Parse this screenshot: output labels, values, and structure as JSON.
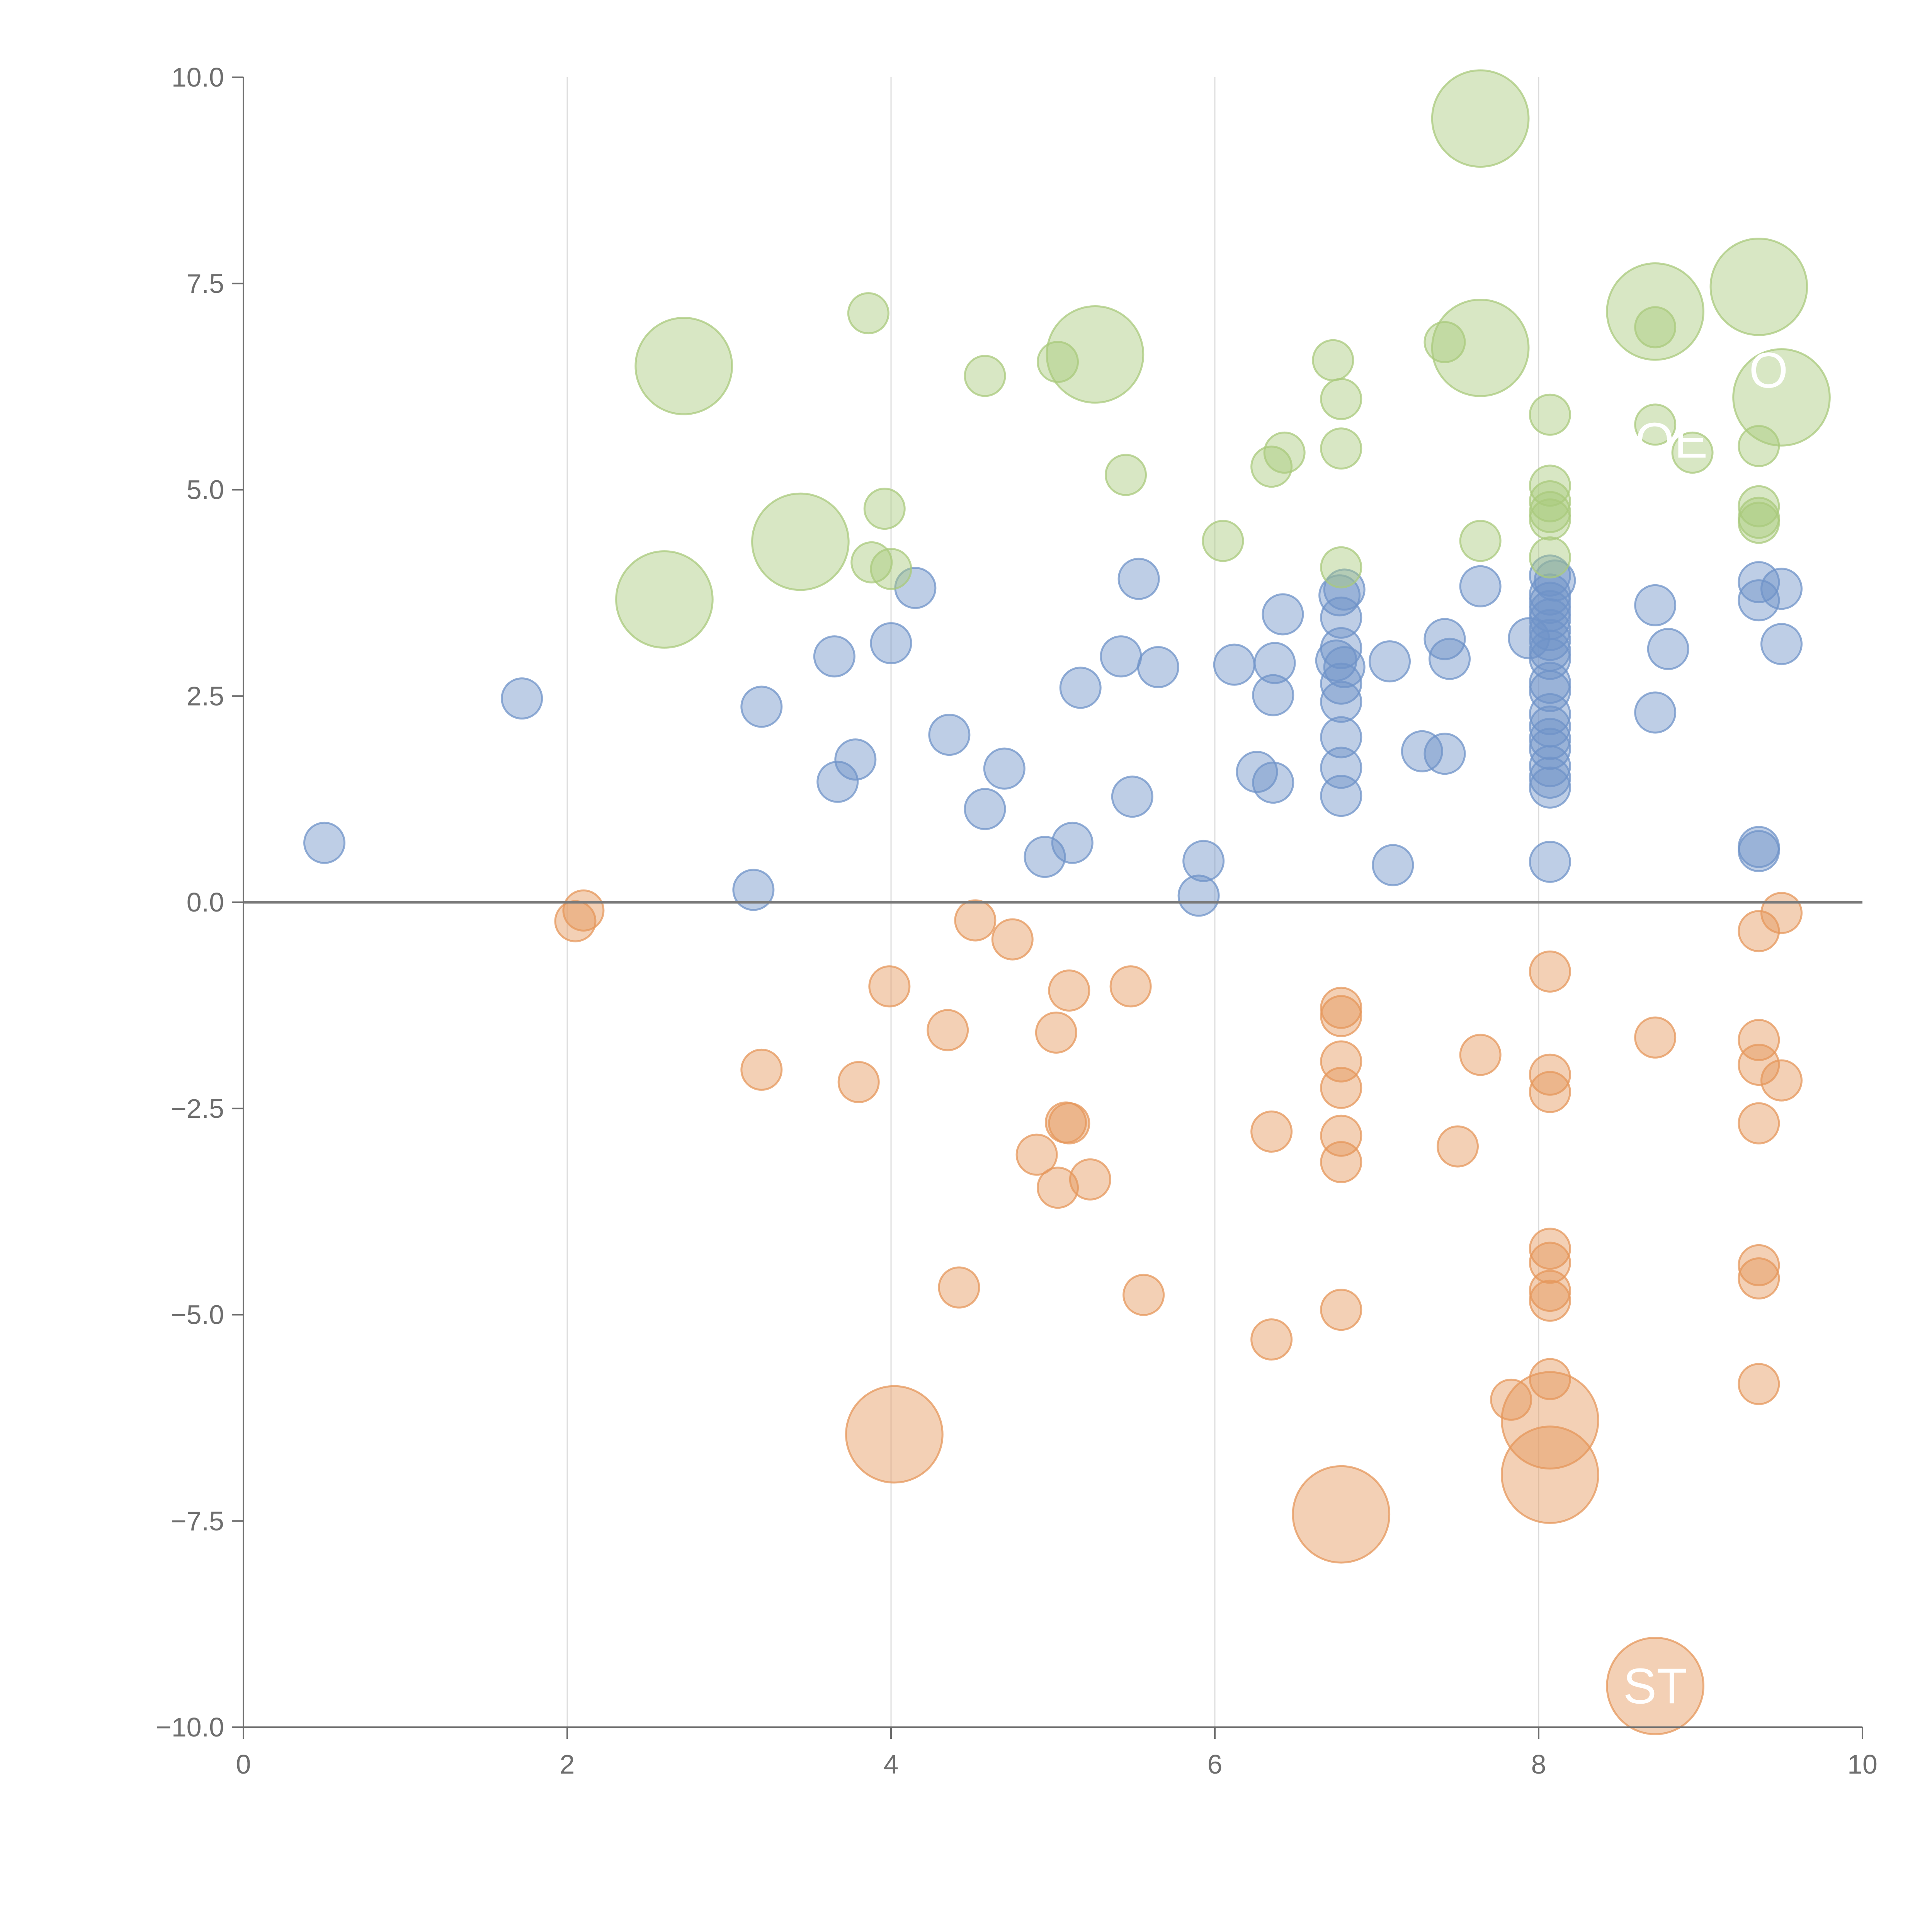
{
  "chart_data": {
    "type": "scatter",
    "title": "",
    "xlabel": "",
    "ylabel": "",
    "xlim": [
      0,
      10
    ],
    "ylim": [
      -10,
      10
    ],
    "x_ticks": [
      0,
      2,
      4,
      6,
      8,
      10
    ],
    "x_tick_labels": [
      "0",
      "2",
      "4",
      "6",
      "8",
      "10"
    ],
    "y_ticks": [
      -10,
      -7.5,
      -5,
      -2.5,
      0,
      2.5,
      5,
      7.5,
      10
    ],
    "y_tick_labels": [
      "−10.0",
      "−7.5",
      "−5.0",
      "−2.5",
      "0.0",
      "2.5",
      "5.0",
      "7.5",
      "10.0"
    ],
    "vertical_grid": [
      2,
      4,
      6,
      8
    ],
    "zero_line": 0,
    "colors": {
      "blue": "#6f93c8",
      "orange": "#e5975b",
      "green": "#a9c97c",
      "axis": "#6e6e6e",
      "grid": "#dcdcdc",
      "zero_line": "#7a7a7a"
    },
    "series": [
      {
        "name": "blue",
        "color_key": "blue",
        "points": [
          [
            0.5,
            0.72,
            1
          ],
          [
            1.72,
            2.47,
            1
          ],
          [
            3.15,
            0.15,
            1
          ],
          [
            3.2,
            2.37,
            1
          ],
          [
            3.65,
            2.98,
            1
          ],
          [
            3.67,
            1.46,
            1
          ],
          [
            3.78,
            1.73,
            1
          ],
          [
            4.0,
            3.14,
            1
          ],
          [
            4.15,
            3.81,
            1
          ],
          [
            4.36,
            2.03,
            1
          ],
          [
            4.58,
            1.13,
            1
          ],
          [
            4.7,
            1.62,
            1
          ],
          [
            4.95,
            0.55,
            1
          ],
          [
            5.12,
            0.72,
            1
          ],
          [
            5.17,
            2.6,
            1
          ],
          [
            5.42,
            2.98,
            1
          ],
          [
            5.49,
            1.28,
            1
          ],
          [
            5.53,
            3.92,
            1
          ],
          [
            5.65,
            2.85,
            1
          ],
          [
            5.9,
            0.08,
            1
          ],
          [
            5.93,
            0.5,
            1
          ],
          [
            6.12,
            2.88,
            1
          ],
          [
            6.26,
            1.58,
            1
          ],
          [
            6.36,
            1.45,
            1
          ],
          [
            6.36,
            2.51,
            1
          ],
          [
            6.37,
            2.9,
            1
          ],
          [
            6.42,
            3.49,
            1
          ],
          [
            6.75,
            2.93,
            1
          ],
          [
            6.77,
            3.72,
            1
          ],
          [
            6.78,
            3.45,
            1
          ],
          [
            6.78,
            3.08,
            1
          ],
          [
            6.78,
            2.65,
            1
          ],
          [
            6.78,
            2.43,
            1
          ],
          [
            6.78,
            2.0,
            1
          ],
          [
            6.78,
            1.63,
            1
          ],
          [
            6.78,
            1.29,
            1
          ],
          [
            6.8,
            3.79,
            1
          ],
          [
            6.8,
            2.85,
            1
          ],
          [
            7.08,
            2.92,
            1
          ],
          [
            7.1,
            0.45,
            1
          ],
          [
            7.28,
            1.83,
            1
          ],
          [
            7.42,
            3.19,
            1
          ],
          [
            7.42,
            1.8,
            1
          ],
          [
            7.45,
            2.95,
            1
          ],
          [
            7.64,
            3.83,
            1
          ],
          [
            7.94,
            3.2,
            1
          ],
          [
            8.07,
            3.96,
            1
          ],
          [
            8.07,
            3.73,
            1
          ],
          [
            8.07,
            3.63,
            1
          ],
          [
            8.07,
            3.53,
            1
          ],
          [
            8.07,
            3.43,
            1
          ],
          [
            8.07,
            3.3,
            1
          ],
          [
            8.07,
            3.18,
            1
          ],
          [
            8.07,
            3.05,
            1
          ],
          [
            8.07,
            2.95,
            1
          ],
          [
            8.07,
            2.66,
            1
          ],
          [
            8.07,
            2.56,
            1
          ],
          [
            8.07,
            2.28,
            1
          ],
          [
            8.07,
            2.13,
            1
          ],
          [
            8.07,
            1.98,
            1
          ],
          [
            8.07,
            1.86,
            1
          ],
          [
            8.07,
            1.65,
            1
          ],
          [
            8.07,
            1.51,
            1
          ],
          [
            8.07,
            1.39,
            1
          ],
          [
            8.07,
            0.49,
            1
          ],
          [
            8.1,
            3.9,
            1
          ],
          [
            8.72,
            3.6,
            1
          ],
          [
            8.72,
            2.3,
            1
          ],
          [
            8.8,
            3.07,
            1
          ],
          [
            9.36,
            3.88,
            1
          ],
          [
            9.36,
            3.66,
            1
          ],
          [
            9.36,
            0.67,
            1
          ],
          [
            9.36,
            0.62,
            1
          ],
          [
            9.5,
            3.8,
            1
          ],
          [
            9.5,
            3.13,
            1
          ]
        ]
      },
      {
        "name": "orange",
        "color_key": "orange",
        "points": [
          [
            2.05,
            -0.23,
            1
          ],
          [
            2.1,
            -0.1,
            1
          ],
          [
            3.2,
            -2.03,
            1
          ],
          [
            3.8,
            -2.18,
            1
          ],
          [
            3.99,
            -1.02,
            1
          ],
          [
            4.02,
            -6.45,
            2.4
          ],
          [
            4.35,
            -1.55,
            1
          ],
          [
            4.42,
            -4.67,
            1
          ],
          [
            4.52,
            -0.22,
            1
          ],
          [
            4.75,
            -0.45,
            1
          ],
          [
            4.9,
            -3.06,
            1
          ],
          [
            5.02,
            -1.58,
            1
          ],
          [
            5.03,
            -3.46,
            1
          ],
          [
            5.08,
            -2.67,
            1
          ],
          [
            5.1,
            -1.07,
            1
          ],
          [
            5.1,
            -2.68,
            1
          ],
          [
            5.23,
            -3.36,
            1
          ],
          [
            5.48,
            -1.02,
            1
          ],
          [
            5.56,
            -4.76,
            1
          ],
          [
            6.35,
            -2.78,
            1
          ],
          [
            6.35,
            -5.3,
            1
          ],
          [
            6.78,
            -1.28,
            1
          ],
          [
            6.78,
            -1.38,
            1
          ],
          [
            6.78,
            -1.93,
            1
          ],
          [
            6.78,
            -2.25,
            1
          ],
          [
            6.78,
            -2.83,
            1
          ],
          [
            6.78,
            -3.15,
            1
          ],
          [
            6.78,
            -4.94,
            1
          ],
          [
            6.78,
            -7.42,
            2.4
          ],
          [
            7.5,
            -2.96,
            1
          ],
          [
            7.64,
            -1.85,
            1
          ],
          [
            7.83,
            -6.03,
            1
          ],
          [
            8.07,
            -0.84,
            1
          ],
          [
            8.07,
            -2.09,
            1
          ],
          [
            8.07,
            -2.3,
            1
          ],
          [
            8.07,
            -4.2,
            1
          ],
          [
            8.07,
            -4.37,
            1
          ],
          [
            8.07,
            -4.71,
            1
          ],
          [
            8.07,
            -4.83,
            1
          ],
          [
            8.07,
            -5.78,
            1
          ],
          [
            8.07,
            -6.28,
            2.4
          ],
          [
            8.07,
            -6.94,
            2.4
          ],
          [
            8.72,
            -1.64,
            1
          ],
          [
            8.72,
            -9.5,
            2.4
          ],
          [
            9.36,
            -0.35,
            1
          ],
          [
            9.36,
            -1.67,
            1
          ],
          [
            9.36,
            -1.97,
            1
          ],
          [
            9.36,
            -2.68,
            1
          ],
          [
            9.36,
            -4.4,
            1
          ],
          [
            9.36,
            -4.56,
            1
          ],
          [
            9.36,
            -5.84,
            1
          ],
          [
            9.5,
            -0.13,
            1
          ],
          [
            9.5,
            -2.16,
            1
          ]
        ]
      },
      {
        "name": "green",
        "color_key": "green",
        "points": [
          [
            2.6,
            3.67,
            2.4
          ],
          [
            2.72,
            6.5,
            2.4
          ],
          [
            3.44,
            4.37,
            2.4
          ],
          [
            3.86,
            7.14,
            1
          ],
          [
            3.88,
            4.12,
            1
          ],
          [
            3.96,
            4.77,
            1
          ],
          [
            4.0,
            4.04,
            1
          ],
          [
            4.58,
            6.38,
            1
          ],
          [
            5.03,
            6.55,
            1
          ],
          [
            5.26,
            6.64,
            2.4
          ],
          [
            5.45,
            5.18,
            1
          ],
          [
            6.05,
            4.38,
            1
          ],
          [
            6.35,
            5.28,
            1
          ],
          [
            6.43,
            5.45,
            1
          ],
          [
            6.73,
            6.57,
            1
          ],
          [
            6.78,
            4.06,
            1
          ],
          [
            6.78,
            5.5,
            1
          ],
          [
            6.78,
            6.1,
            1
          ],
          [
            7.42,
            6.79,
            1
          ],
          [
            7.64,
            4.38,
            1
          ],
          [
            7.64,
            6.72,
            2.4
          ],
          [
            7.64,
            9.5,
            2.4
          ],
          [
            8.07,
            5.05,
            1
          ],
          [
            8.07,
            4.86,
            1
          ],
          [
            8.07,
            4.73,
            1
          ],
          [
            8.07,
            4.64,
            1
          ],
          [
            8.07,
            4.18,
            1
          ],
          [
            8.07,
            5.91,
            1
          ],
          [
            8.72,
            7.16,
            2.4
          ],
          [
            8.72,
            6.97,
            1
          ],
          [
            8.72,
            5.79,
            1
          ],
          [
            8.95,
            5.45,
            1
          ],
          [
            9.36,
            7.46,
            2.4
          ],
          [
            9.36,
            5.53,
            1
          ],
          [
            9.36,
            4.8,
            1
          ],
          [
            9.36,
            4.66,
            1
          ],
          [
            9.36,
            4.6,
            1
          ],
          [
            9.5,
            6.12,
            2.4
          ]
        ]
      }
    ],
    "annotations": [
      {
        "text": "ST",
        "x": 8.72,
        "y": -9.5
      },
      {
        "text": "OE",
        "x": 8.82,
        "y": 5.6
      },
      {
        "text": "O",
        "x": 9.42,
        "y": 6.45
      }
    ]
  }
}
